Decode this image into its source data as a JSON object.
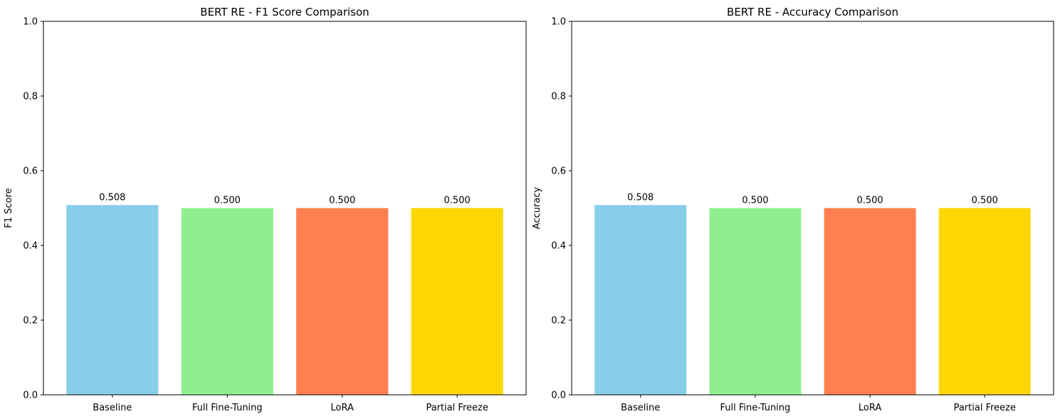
{
  "chart_data": [
    {
      "type": "bar",
      "title": "BERT RE - F1 Score Comparison",
      "xlabel": "",
      "ylabel": "F1 Score",
      "categories": [
        "Baseline",
        "Full Fine-Tuning",
        "LoRA",
        "Partial Freeze"
      ],
      "values": [
        0.508,
        0.5,
        0.5,
        0.5
      ],
      "value_labels": [
        "0.508",
        "0.500",
        "0.500",
        "0.500"
      ],
      "colors": [
        "#87ceeb",
        "#90ee90",
        "#ff7f50",
        "#ffd700"
      ],
      "ylim": [
        0,
        1
      ],
      "yticks": [
        0,
        0.2,
        0.4,
        0.6,
        0.8,
        1.0
      ],
      "ytick_labels": [
        "0.0",
        "0.2",
        "0.4",
        "0.6",
        "0.8",
        "1.0"
      ],
      "grid": false,
      "legend": "none"
    },
    {
      "type": "bar",
      "title": "BERT RE - Accuracy Comparison",
      "xlabel": "",
      "ylabel": "Accuracy",
      "categories": [
        "Baseline",
        "Full Fine-Tuning",
        "LoRA",
        "Partial Freeze"
      ],
      "values": [
        0.508,
        0.5,
        0.5,
        0.5
      ],
      "value_labels": [
        "0.508",
        "0.500",
        "0.500",
        "0.500"
      ],
      "colors": [
        "#87ceeb",
        "#90ee90",
        "#ff7f50",
        "#ffd700"
      ],
      "ylim": [
        0,
        1
      ],
      "yticks": [
        0,
        0.2,
        0.4,
        0.6,
        0.8,
        1.0
      ],
      "ytick_labels": [
        "0.0",
        "0.2",
        "0.4",
        "0.6",
        "0.8",
        "1.0"
      ],
      "grid": false,
      "legend": "none"
    }
  ]
}
